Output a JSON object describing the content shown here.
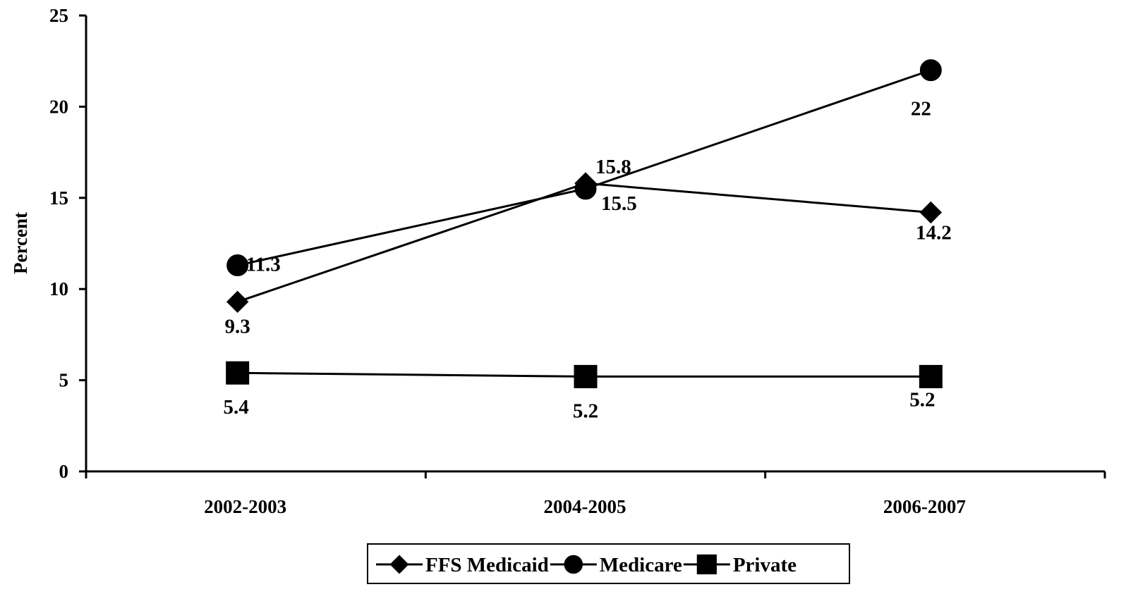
{
  "chart_data": {
    "type": "line",
    "categories": [
      "2002-2003",
      "2004-2005",
      "2006-2007"
    ],
    "ylabel": "Percent",
    "ylim": [
      0,
      25
    ],
    "yticks": [
      0,
      5,
      10,
      15,
      20,
      25
    ],
    "grid": false,
    "legend_placement": "bottom",
    "series": [
      {
        "name": "FFS Medicaid",
        "marker": "diamond",
        "values": [
          9.3,
          15.8,
          14.2
        ],
        "labels": [
          "9.3",
          "15.8",
          "14.2"
        ]
      },
      {
        "name": "Medicare",
        "marker": "circle",
        "values": [
          11.3,
          15.5,
          22
        ],
        "labels": [
          "11.3",
          "15.5",
          "22"
        ]
      },
      {
        "name": "Private",
        "marker": "square",
        "values": [
          5.4,
          5.2,
          5.2
        ],
        "labels": [
          "5.4",
          "5.2",
          "5.2"
        ]
      }
    ]
  }
}
